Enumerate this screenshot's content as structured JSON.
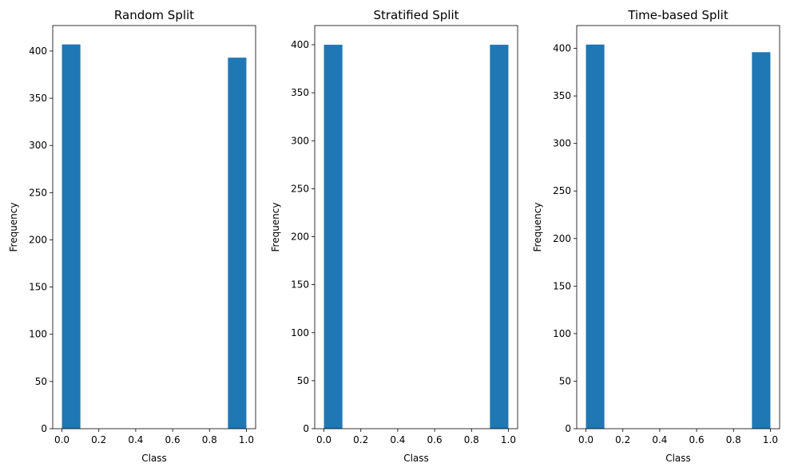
{
  "chart_data": [
    {
      "type": "bar",
      "title": "Random Split",
      "xlabel": "Class",
      "ylabel": "Frequency",
      "bars": [
        {
          "x_start": 0.0,
          "x_end": 0.1,
          "value": 407
        },
        {
          "x_start": 0.9,
          "x_end": 1.0,
          "value": 393
        }
      ],
      "xlim": [
        -0.05,
        1.05
      ],
      "ylim": [
        0,
        427
      ],
      "xticks": [
        0.0,
        0.2,
        0.4,
        0.6,
        0.8,
        1.0
      ],
      "xtick_labels": [
        "0.0",
        "0.2",
        "0.4",
        "0.6",
        "0.8",
        "1.0"
      ],
      "yticks": [
        0,
        50,
        100,
        150,
        200,
        250,
        300,
        350,
        400
      ],
      "ytick_labels": [
        "0",
        "50",
        "100",
        "150",
        "200",
        "250",
        "300",
        "350",
        "400"
      ],
      "grid": false,
      "bar_color": "#1f77b4"
    },
    {
      "type": "bar",
      "title": "Stratified Split",
      "xlabel": "Class",
      "ylabel": "Frequency",
      "bars": [
        {
          "x_start": 0.0,
          "x_end": 0.1,
          "value": 400
        },
        {
          "x_start": 0.9,
          "x_end": 1.0,
          "value": 400
        }
      ],
      "xlim": [
        -0.05,
        1.05
      ],
      "ylim": [
        0,
        420
      ],
      "xticks": [
        0.0,
        0.2,
        0.4,
        0.6,
        0.8,
        1.0
      ],
      "xtick_labels": [
        "0.0",
        "0.2",
        "0.4",
        "0.6",
        "0.8",
        "1.0"
      ],
      "yticks": [
        0,
        50,
        100,
        150,
        200,
        250,
        300,
        350,
        400
      ],
      "ytick_labels": [
        "0",
        "50",
        "100",
        "150",
        "200",
        "250",
        "300",
        "350",
        "400"
      ],
      "grid": false,
      "bar_color": "#1f77b4"
    },
    {
      "type": "bar",
      "title": "Time-based Split",
      "xlabel": "Class",
      "ylabel": "Frequency",
      "bars": [
        {
          "x_start": 0.0,
          "x_end": 0.1,
          "value": 404
        },
        {
          "x_start": 0.9,
          "x_end": 1.0,
          "value": 396
        }
      ],
      "xlim": [
        -0.05,
        1.05
      ],
      "ylim": [
        0,
        424
      ],
      "xticks": [
        0.0,
        0.2,
        0.4,
        0.6,
        0.8,
        1.0
      ],
      "xtick_labels": [
        "0.0",
        "0.2",
        "0.4",
        "0.6",
        "0.8",
        "1.0"
      ],
      "yticks": [
        0,
        50,
        100,
        150,
        200,
        250,
        300,
        350,
        400
      ],
      "ytick_labels": [
        "0",
        "50",
        "100",
        "150",
        "200",
        "250",
        "300",
        "350",
        "400"
      ],
      "grid": false,
      "bar_color": "#1f77b4"
    }
  ]
}
